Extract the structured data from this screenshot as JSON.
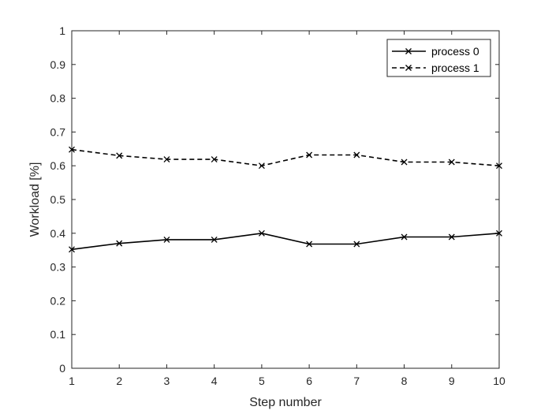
{
  "chart_data": {
    "type": "line",
    "xlabel": "Step number",
    "ylabel": "Workload [%]",
    "xlim": [
      1,
      10
    ],
    "ylim": [
      0,
      1
    ],
    "xticks": [
      1,
      2,
      3,
      4,
      5,
      6,
      7,
      8,
      9,
      10
    ],
    "yticks": [
      0,
      0.1,
      0.2,
      0.3,
      0.4,
      0.5,
      0.6,
      0.7,
      0.8,
      0.9,
      1
    ],
    "ytick_labels": [
      "0",
      "0.1",
      "0.2",
      "0.3",
      "0.4",
      "0.5",
      "0.6",
      "0.7",
      "0.8",
      "0.9",
      "1"
    ],
    "grid": false,
    "legend_position": "top-right",
    "x": [
      1,
      2,
      3,
      4,
      5,
      6,
      7,
      8,
      9,
      10
    ],
    "series": [
      {
        "name": "process 0",
        "style": "solid",
        "marker": "x",
        "color": "#000000",
        "values": [
          0.352,
          0.37,
          0.381,
          0.381,
          0.4,
          0.368,
          0.368,
          0.389,
          0.389,
          0.4
        ]
      },
      {
        "name": "process 1",
        "style": "dashed",
        "marker": "x",
        "color": "#000000",
        "values": [
          0.648,
          0.63,
          0.619,
          0.619,
          0.6,
          0.632,
          0.632,
          0.611,
          0.611,
          0.6
        ]
      }
    ]
  }
}
